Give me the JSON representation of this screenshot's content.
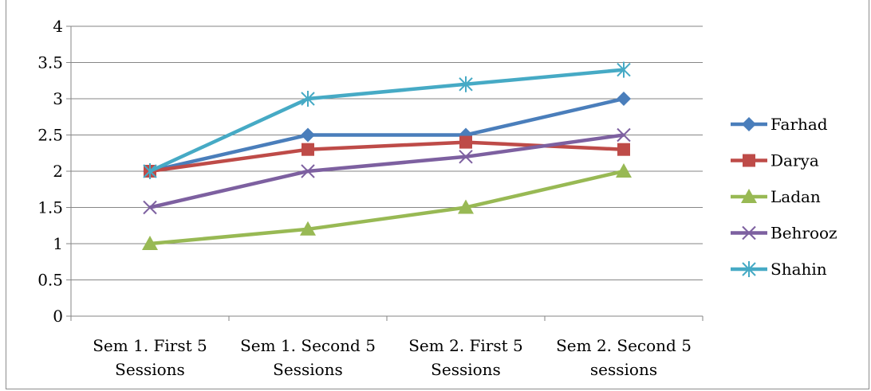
{
  "chart_data": {
    "type": "line",
    "categories": [
      [
        "Sem 1. First 5",
        "Sessions"
      ],
      [
        "Sem 1. Second 5",
        "Sessions"
      ],
      [
        "Sem 2. First 5",
        "Sessions"
      ],
      [
        "Sem 2. Second 5",
        "sessions"
      ]
    ],
    "ylim": [
      0,
      4
    ],
    "yticks": [
      "0",
      "0.5",
      "1",
      "1.5",
      "2",
      "2.5",
      "3",
      "3.5",
      "4"
    ],
    "grid": true,
    "legend_position": "right",
    "series": [
      {
        "name": "Farhad",
        "values": [
          2.0,
          2.5,
          2.5,
          3.0
        ],
        "color": "#4a7ebb",
        "marker": "diamond"
      },
      {
        "name": "Darya",
        "values": [
          2.0,
          2.3,
          2.4,
          2.3
        ],
        "color": "#be4b48",
        "marker": "square"
      },
      {
        "name": "Ladan",
        "values": [
          1.0,
          1.2,
          1.5,
          2.0
        ],
        "color": "#98b954",
        "marker": "triangle"
      },
      {
        "name": "Behrooz",
        "values": [
          1.5,
          2.0,
          2.2,
          2.5
        ],
        "color": "#7d60a0",
        "marker": "x"
      },
      {
        "name": "Shahin",
        "values": [
          2.0,
          3.0,
          3.2,
          3.4
        ],
        "color": "#46aac5",
        "marker": "star"
      }
    ]
  }
}
